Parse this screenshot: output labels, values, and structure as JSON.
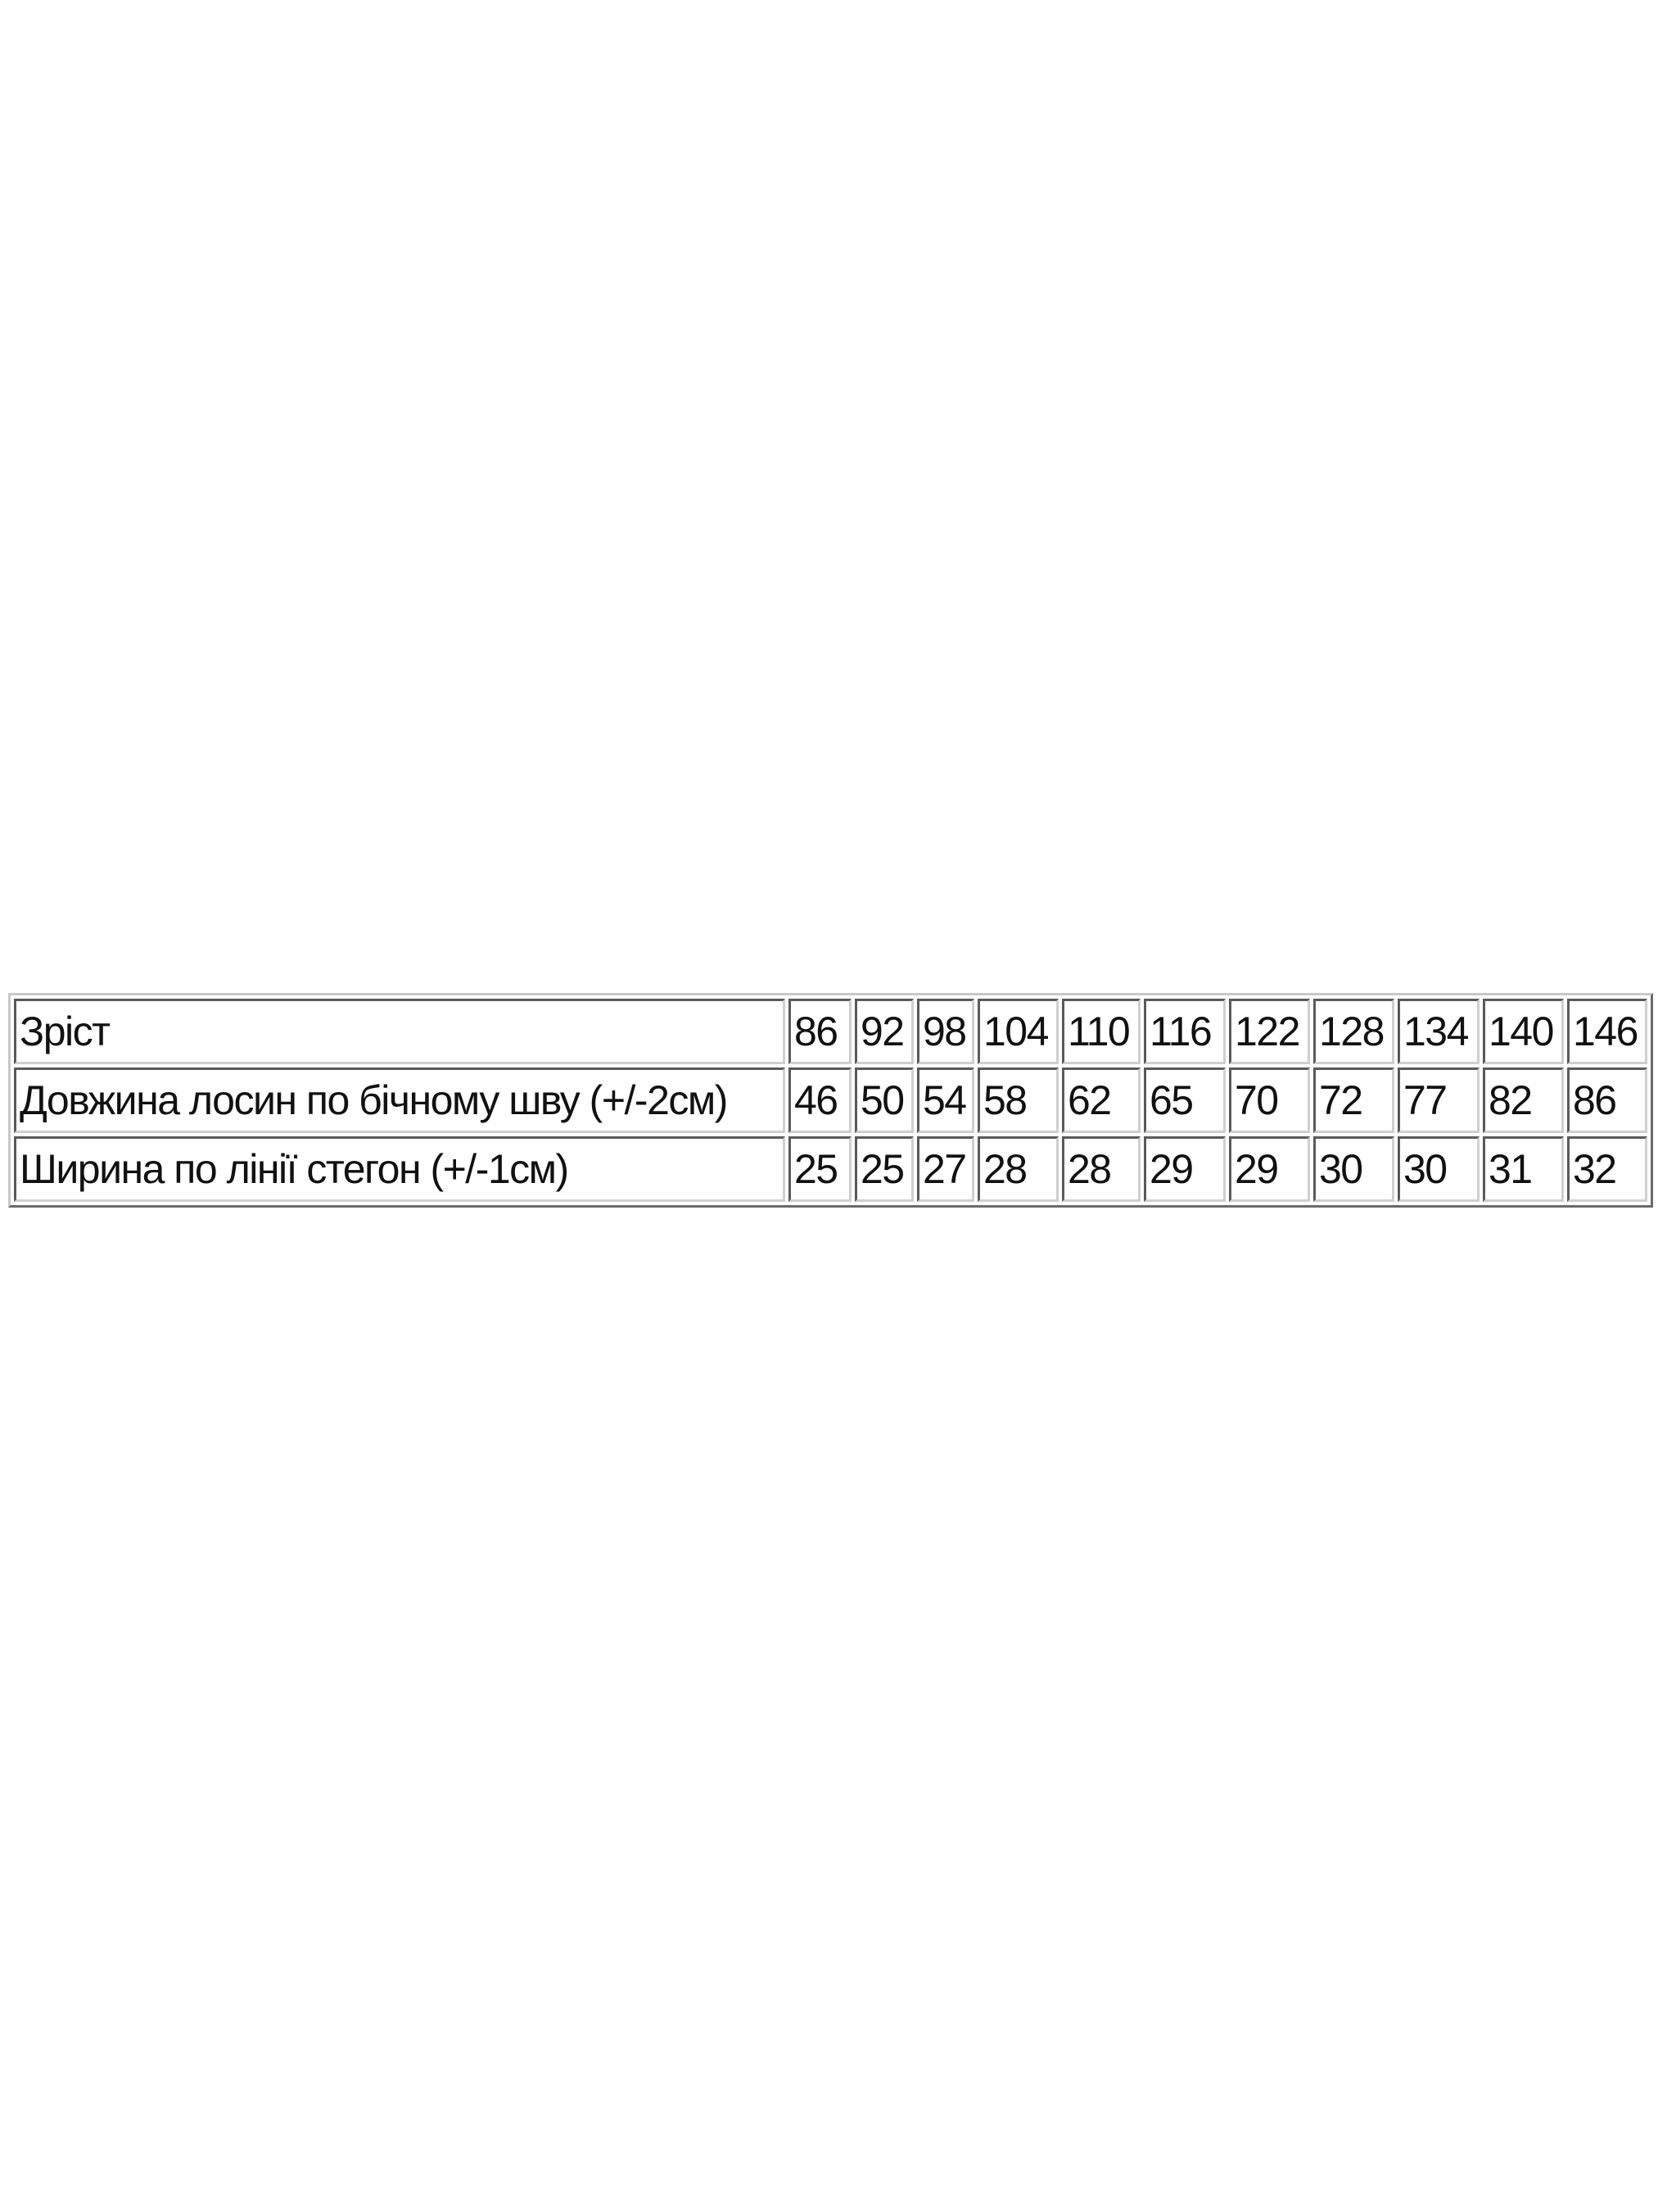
{
  "table": {
    "rows": [
      {
        "label": "Зріст",
        "values": [
          "86",
          "92",
          "98",
          "104",
          "110",
          "116",
          "122",
          "128",
          "134",
          "140",
          "146"
        ]
      },
      {
        "label": "Довжина лосин по бічному шву (+/-2см)",
        "values": [
          "46",
          "50",
          "54",
          "58",
          "62",
          "65",
          "70",
          "72",
          "77",
          "82",
          "86"
        ]
      },
      {
        "label": "Ширина по лінії стегон (+/-1см)",
        "values": [
          "25",
          "25",
          "27",
          "28",
          "28",
          "29",
          "29",
          "30",
          "30",
          "31",
          "32"
        ]
      }
    ]
  }
}
